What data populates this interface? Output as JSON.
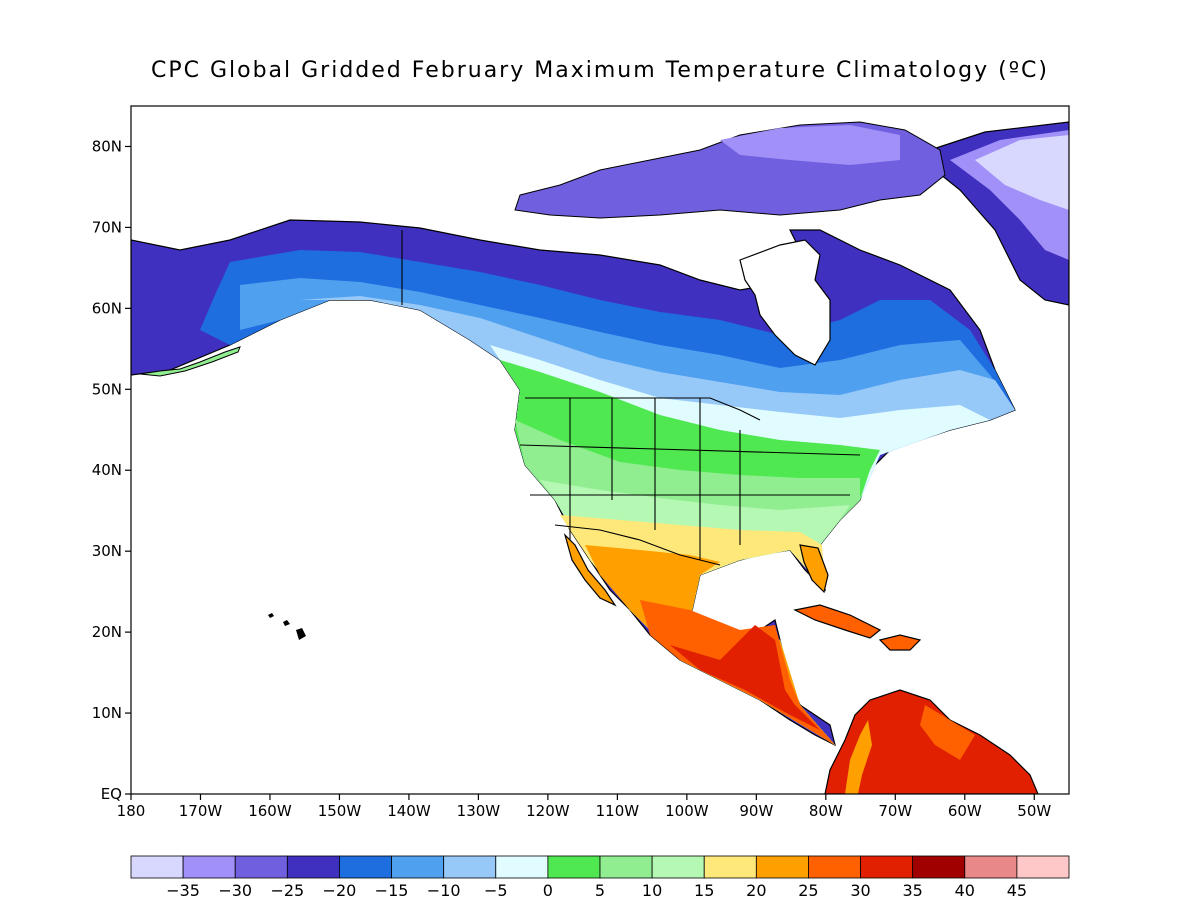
{
  "title": "CPC Global Gridded February Maximum Temperature Climatology (ºC)",
  "map": {
    "projection": "latlon",
    "lon_range": [
      -180,
      -45
    ],
    "lat_range": [
      0,
      85
    ],
    "x_ticks": [
      {
        "lon": -180,
        "label": "180"
      },
      {
        "lon": -170,
        "label": "170W"
      },
      {
        "lon": -160,
        "label": "160W"
      },
      {
        "lon": -150,
        "label": "150W"
      },
      {
        "lon": -140,
        "label": "140W"
      },
      {
        "lon": -130,
        "label": "130W"
      },
      {
        "lon": -120,
        "label": "120W"
      },
      {
        "lon": -110,
        "label": "110W"
      },
      {
        "lon": -100,
        "label": "100W"
      },
      {
        "lon": -90,
        "label": "90W"
      },
      {
        "lon": -80,
        "label": "80W"
      },
      {
        "lon": -70,
        "label": "70W"
      },
      {
        "lon": -60,
        "label": "60W"
      },
      {
        "lon": -50,
        "label": "50W"
      }
    ],
    "y_ticks": [
      {
        "lat": 0,
        "label": "EQ"
      },
      {
        "lat": 10,
        "label": "10N"
      },
      {
        "lat": 20,
        "label": "20N"
      },
      {
        "lat": 30,
        "label": "30N"
      },
      {
        "lat": 40,
        "label": "40N"
      },
      {
        "lat": 50,
        "label": "50N"
      },
      {
        "lat": 60,
        "label": "60N"
      },
      {
        "lat": 70,
        "label": "70N"
      },
      {
        "lat": 80,
        "label": "80N"
      }
    ]
  },
  "colorbar": {
    "colors": [
      "#d8d8ff",
      "#a090f8",
      "#7060e0",
      "#4030c0",
      "#1e6ee0",
      "#50a0f0",
      "#96c8f8",
      "#e0fcff",
      "#50e850",
      "#90ee90",
      "#b4f8b4",
      "#ffe87a",
      "#ffa000",
      "#ff6000",
      "#e02000",
      "#a00000",
      "#e88888",
      "#ffc8c8"
    ],
    "labels": [
      "-35",
      "-30",
      "-25",
      "-20",
      "-15",
      "-10",
      "-5",
      "0",
      "5",
      "10",
      "15",
      "20",
      "25",
      "30",
      "35",
      "40",
      "45"
    ]
  }
}
